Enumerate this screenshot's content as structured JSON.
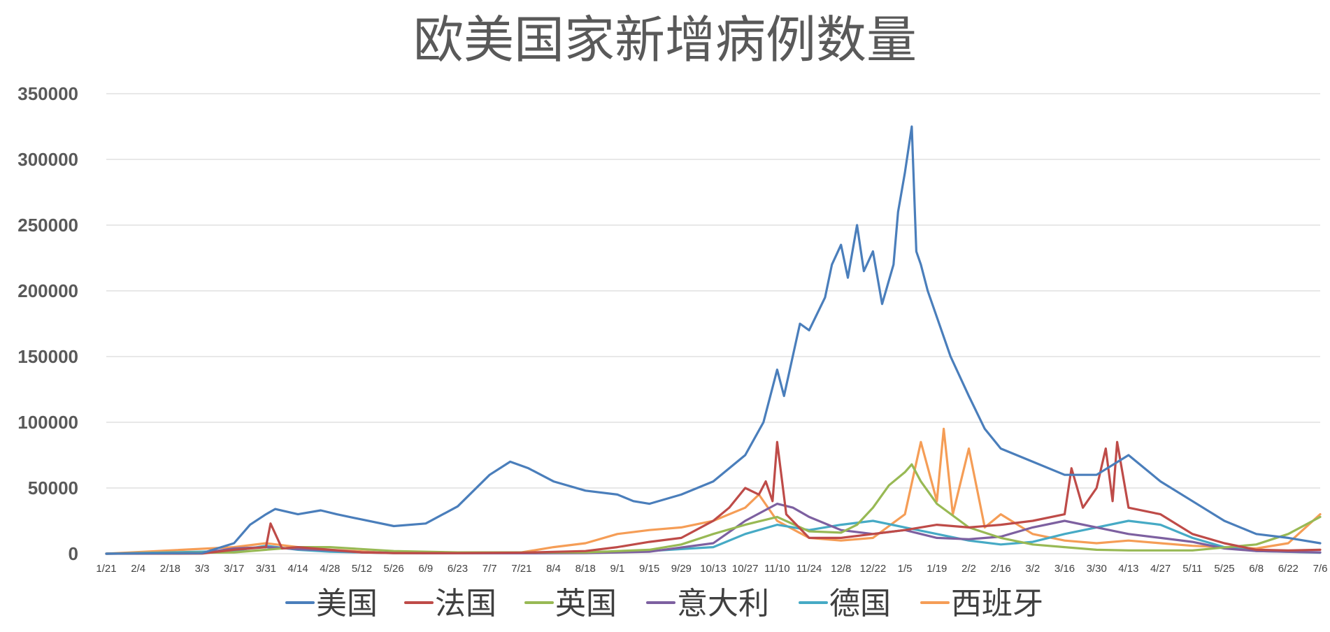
{
  "chart_data": {
    "type": "line",
    "title": "欧美国家新增病例数量",
    "xlabel": "",
    "ylabel": "",
    "ylim": [
      0,
      350000
    ],
    "yticks": [
      "350000",
      "300000",
      "250000",
      "200000",
      "150000",
      "100000",
      "50000",
      "0"
    ],
    "xlim": [
      "2020-01-21",
      "2021-07-06"
    ],
    "x_tick_labels": [
      "1/21",
      "2/4",
      "2/18",
      "3/3",
      "3/17",
      "3/31",
      "4/14",
      "4/28",
      "5/12",
      "5/26",
      "6/9",
      "6/23",
      "7/7",
      "7/21",
      "8/4",
      "8/18",
      "9/1",
      "9/15",
      "9/29",
      "10/13",
      "10/27",
      "11/10",
      "11/24",
      "12/8",
      "12/22",
      "1/5",
      "1/19",
      "2/2",
      "2/16",
      "3/2",
      "3/16",
      "3/30",
      "4/13",
      "4/27",
      "5/11",
      "5/25",
      "6/8",
      "6/22",
      "7/6"
    ],
    "grid": true,
    "legend": "bottom",
    "series": [
      {
        "name": "美国",
        "color": "#4a7ebb",
        "x": [
          "2020-01-21",
          "2020-03-03",
          "2020-03-17",
          "2020-03-24",
          "2020-03-31",
          "2020-04-04",
          "2020-04-14",
          "2020-04-24",
          "2020-05-01",
          "2020-05-12",
          "2020-05-26",
          "2020-06-09",
          "2020-06-23",
          "2020-07-07",
          "2020-07-16",
          "2020-07-24",
          "2020-08-04",
          "2020-08-18",
          "2020-09-01",
          "2020-09-08",
          "2020-09-15",
          "2020-09-29",
          "2020-10-13",
          "2020-10-27",
          "2020-11-04",
          "2020-11-10",
          "2020-11-13",
          "2020-11-20",
          "2020-11-24",
          "2020-12-01",
          "2020-12-04",
          "2020-12-08",
          "2020-12-11",
          "2020-12-15",
          "2020-12-18",
          "2020-12-22",
          "2020-12-26",
          "2020-12-31",
          "2021-01-02",
          "2021-01-05",
          "2021-01-08",
          "2021-01-10",
          "2021-01-12",
          "2021-01-15",
          "2021-01-19",
          "2021-01-25",
          "2021-02-02",
          "2021-02-09",
          "2021-02-16",
          "2021-03-02",
          "2021-03-16",
          "2021-03-30",
          "2021-04-13",
          "2021-04-27",
          "2021-05-11",
          "2021-05-25",
          "2021-06-08",
          "2021-06-22",
          "2021-07-06"
        ],
        "y": [
          0,
          500,
          8000,
          22000,
          30000,
          34000,
          30000,
          33000,
          30000,
          26000,
          21000,
          23000,
          36000,
          60000,
          70000,
          65000,
          55000,
          48000,
          45000,
          40000,
          38000,
          45000,
          55000,
          75000,
          100000,
          140000,
          120000,
          175000,
          170000,
          195000,
          220000,
          235000,
          210000,
          250000,
          215000,
          230000,
          190000,
          220000,
          260000,
          290000,
          325000,
          230000,
          220000,
          200000,
          180000,
          150000,
          120000,
          95000,
          80000,
          70000,
          60000,
          60000,
          75000,
          55000,
          40000,
          25000,
          15000,
          12000,
          8000
        ]
      },
      {
        "name": "法国",
        "color": "#be4b48",
        "x": [
          "2020-01-21",
          "2020-03-03",
          "2020-03-17",
          "2020-03-31",
          "2020-04-02",
          "2020-04-07",
          "2020-04-14",
          "2020-04-28",
          "2020-05-12",
          "2020-05-26",
          "2020-06-23",
          "2020-07-21",
          "2020-08-18",
          "2020-09-01",
          "2020-09-15",
          "2020-09-29",
          "2020-10-13",
          "2020-10-20",
          "2020-10-27",
          "2020-11-02",
          "2020-11-05",
          "2020-11-08",
          "2020-11-10",
          "2020-11-14",
          "2020-11-24",
          "2020-12-08",
          "2020-12-22",
          "2021-01-05",
          "2021-01-19",
          "2021-02-02",
          "2021-02-16",
          "2021-03-02",
          "2021-03-16",
          "2021-03-19",
          "2021-03-24",
          "2021-03-30",
          "2021-04-03",
          "2021-04-06",
          "2021-04-08",
          "2021-04-13",
          "2021-04-27",
          "2021-05-11",
          "2021-05-25",
          "2021-06-08",
          "2021-06-22",
          "2021-07-06"
        ],
        "y": [
          0,
          100,
          3000,
          5000,
          23000,
          4000,
          5000,
          3000,
          1000,
          500,
          500,
          800,
          2000,
          5000,
          9000,
          12000,
          25000,
          35000,
          50000,
          45000,
          55000,
          40000,
          85000,
          30000,
          12000,
          12000,
          15000,
          18000,
          22000,
          20000,
          22000,
          25000,
          30000,
          65000,
          35000,
          50000,
          80000,
          40000,
          85000,
          35000,
          30000,
          15000,
          8000,
          3000,
          2500,
          3000
        ]
      },
      {
        "name": "英国",
        "color": "#98b954",
        "x": [
          "2020-01-21",
          "2020-03-17",
          "2020-04-14",
          "2020-04-28",
          "2020-05-26",
          "2020-06-23",
          "2020-08-18",
          "2020-09-15",
          "2020-09-29",
          "2020-10-13",
          "2020-10-27",
          "2020-11-10",
          "2020-11-24",
          "2020-12-08",
          "2020-12-15",
          "2020-12-22",
          "2020-12-29",
          "2021-01-05",
          "2021-01-08",
          "2021-01-12",
          "2021-01-19",
          "2021-02-02",
          "2021-02-16",
          "2021-03-02",
          "2021-03-16",
          "2021-03-30",
          "2021-04-13",
          "2021-05-11",
          "2021-06-08",
          "2021-06-22",
          "2021-07-06"
        ],
        "y": [
          0,
          1000,
          5000,
          5000,
          2000,
          1000,
          1000,
          3000,
          7000,
          15000,
          22000,
          28000,
          17000,
          16000,
          22000,
          35000,
          52000,
          62000,
          68000,
          55000,
          38000,
          20000,
          12000,
          7000,
          5000,
          3000,
          2500,
          2500,
          7000,
          15000,
          28000
        ]
      },
      {
        "name": "意大利",
        "color": "#7d60a0",
        "x": [
          "2020-01-21",
          "2020-03-03",
          "2020-03-17",
          "2020-03-31",
          "2020-04-14",
          "2020-04-28",
          "2020-05-12",
          "2020-06-09",
          "2020-07-21",
          "2020-08-18",
          "2020-09-15",
          "2020-10-13",
          "2020-10-27",
          "2020-11-10",
          "2020-11-17",
          "2020-11-24",
          "2020-12-08",
          "2020-12-22",
          "2021-01-05",
          "2021-01-19",
          "2021-02-02",
          "2021-02-16",
          "2021-03-02",
          "2021-03-16",
          "2021-03-30",
          "2021-04-13",
          "2021-04-27",
          "2021-05-11",
          "2021-05-25",
          "2021-06-08",
          "2021-07-06"
        ],
        "y": [
          0,
          500,
          4000,
          5000,
          3500,
          2500,
          1000,
          300,
          300,
          500,
          1500,
          8000,
          25000,
          38000,
          35000,
          28000,
          18000,
          15000,
          18000,
          12000,
          11000,
          13000,
          20000,
          25000,
          20000,
          15000,
          12000,
          9000,
          4000,
          2000,
          1000
        ]
      },
      {
        "name": "德国",
        "color": "#46aac5",
        "x": [
          "2020-01-21",
          "2020-03-17",
          "2020-03-31",
          "2020-04-14",
          "2020-04-28",
          "2020-05-26",
          "2020-07-21",
          "2020-08-18",
          "2020-09-15",
          "2020-10-13",
          "2020-10-27",
          "2020-11-10",
          "2020-11-24",
          "2020-12-08",
          "2020-12-22",
          "2021-01-05",
          "2021-01-19",
          "2021-02-02",
          "2021-02-16",
          "2021-03-02",
          "2021-03-16",
          "2021-03-30",
          "2021-04-13",
          "2021-04-27",
          "2021-05-11",
          "2021-05-25",
          "2021-06-08",
          "2021-07-06"
        ],
        "y": [
          0,
          2000,
          6000,
          3000,
          1500,
          500,
          500,
          1200,
          2000,
          5000,
          15000,
          22000,
          18000,
          22000,
          25000,
          20000,
          15000,
          10000,
          7000,
          9000,
          15000,
          20000,
          25000,
          22000,
          12000,
          5000,
          2000,
          800
        ]
      },
      {
        "name": "西班牙",
        "color": "#f59d56",
        "x": [
          "2020-01-21",
          "2020-03-17",
          "2020-03-31",
          "2020-04-14",
          "2020-04-28",
          "2020-05-26",
          "2020-06-23",
          "2020-07-21",
          "2020-08-04",
          "2020-08-18",
          "2020-09-01",
          "2020-09-15",
          "2020-09-29",
          "2020-10-13",
          "2020-10-27",
          "2020-11-02",
          "2020-11-10",
          "2020-11-24",
          "2020-12-08",
          "2020-12-22",
          "2021-01-05",
          "2021-01-12",
          "2021-01-19",
          "2021-01-22",
          "2021-01-26",
          "2021-02-02",
          "2021-02-09",
          "2021-02-16",
          "2021-03-02",
          "2021-03-16",
          "2021-03-30",
          "2021-04-13",
          "2021-04-27",
          "2021-05-11",
          "2021-05-25",
          "2021-06-08",
          "2021-06-22",
          "2021-07-06"
        ],
        "y": [
          0,
          5000,
          8000,
          5000,
          3000,
          500,
          500,
          1000,
          5000,
          8000,
          15000,
          18000,
          20000,
          25000,
          35000,
          45000,
          25000,
          12000,
          10000,
          12000,
          30000,
          85000,
          40000,
          95000,
          30000,
          80000,
          20000,
          30000,
          15000,
          10000,
          8000,
          10000,
          8000,
          6000,
          5000,
          4000,
          8000,
          30000
        ]
      }
    ]
  }
}
